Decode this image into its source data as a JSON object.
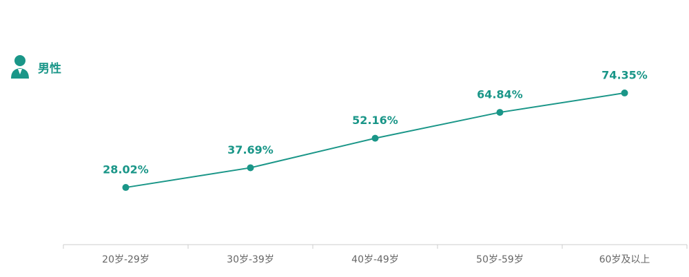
{
  "chart_data": {
    "type": "line",
    "categories": [
      "20岁-29岁",
      "30岁-39岁",
      "40岁-49岁",
      "50岁-59岁",
      "60岁及以上"
    ],
    "series": [
      {
        "name": "男性",
        "color": "#1a9688",
        "values": [
          28.02,
          37.69,
          52.16,
          64.84,
          74.35
        ],
        "value_labels": [
          "28.02%",
          "37.69%",
          "52.16%",
          "64.84%",
          "74.35%"
        ]
      }
    ],
    "ylim": [
      0,
      100
    ]
  }
}
